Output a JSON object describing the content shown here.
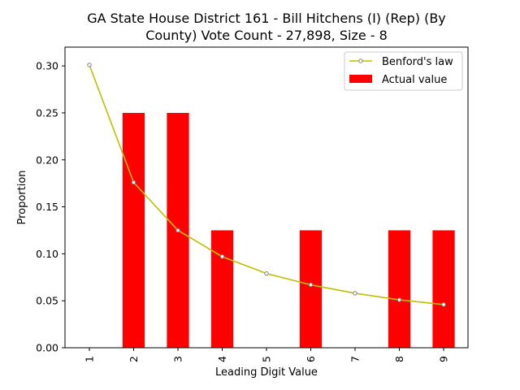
{
  "chart_data": {
    "type": "bar",
    "title_line1": "GA State House District 161 - Bill Hitchens (I) (Rep) (By",
    "title_line2": "County) Vote Count - 27,898, Size - 8",
    "xlabel": "Leading Digit Value",
    "ylabel": "Proportion",
    "categories": [
      "1",
      "2",
      "3",
      "4",
      "5",
      "6",
      "7",
      "8",
      "9"
    ],
    "ylim": [
      0,
      0.32
    ],
    "yticks": [
      "0.00",
      "0.05",
      "0.10",
      "0.15",
      "0.20",
      "0.25",
      "0.30"
    ],
    "series": [
      {
        "name": "Actual value",
        "type": "bar",
        "color": "#ff0000",
        "values": [
          0.0,
          0.25,
          0.25,
          0.125,
          0.0,
          0.125,
          0.0,
          0.125,
          0.125
        ]
      },
      {
        "name": "Benford's law",
        "type": "line",
        "color": "#bfbf00",
        "values": [
          0.301,
          0.176,
          0.125,
          0.097,
          0.079,
          0.067,
          0.058,
          0.051,
          0.046
        ]
      }
    ],
    "legend": {
      "position": "top-right",
      "line_label": "Benford's law",
      "bar_label": "Actual value"
    },
    "grid": false
  }
}
